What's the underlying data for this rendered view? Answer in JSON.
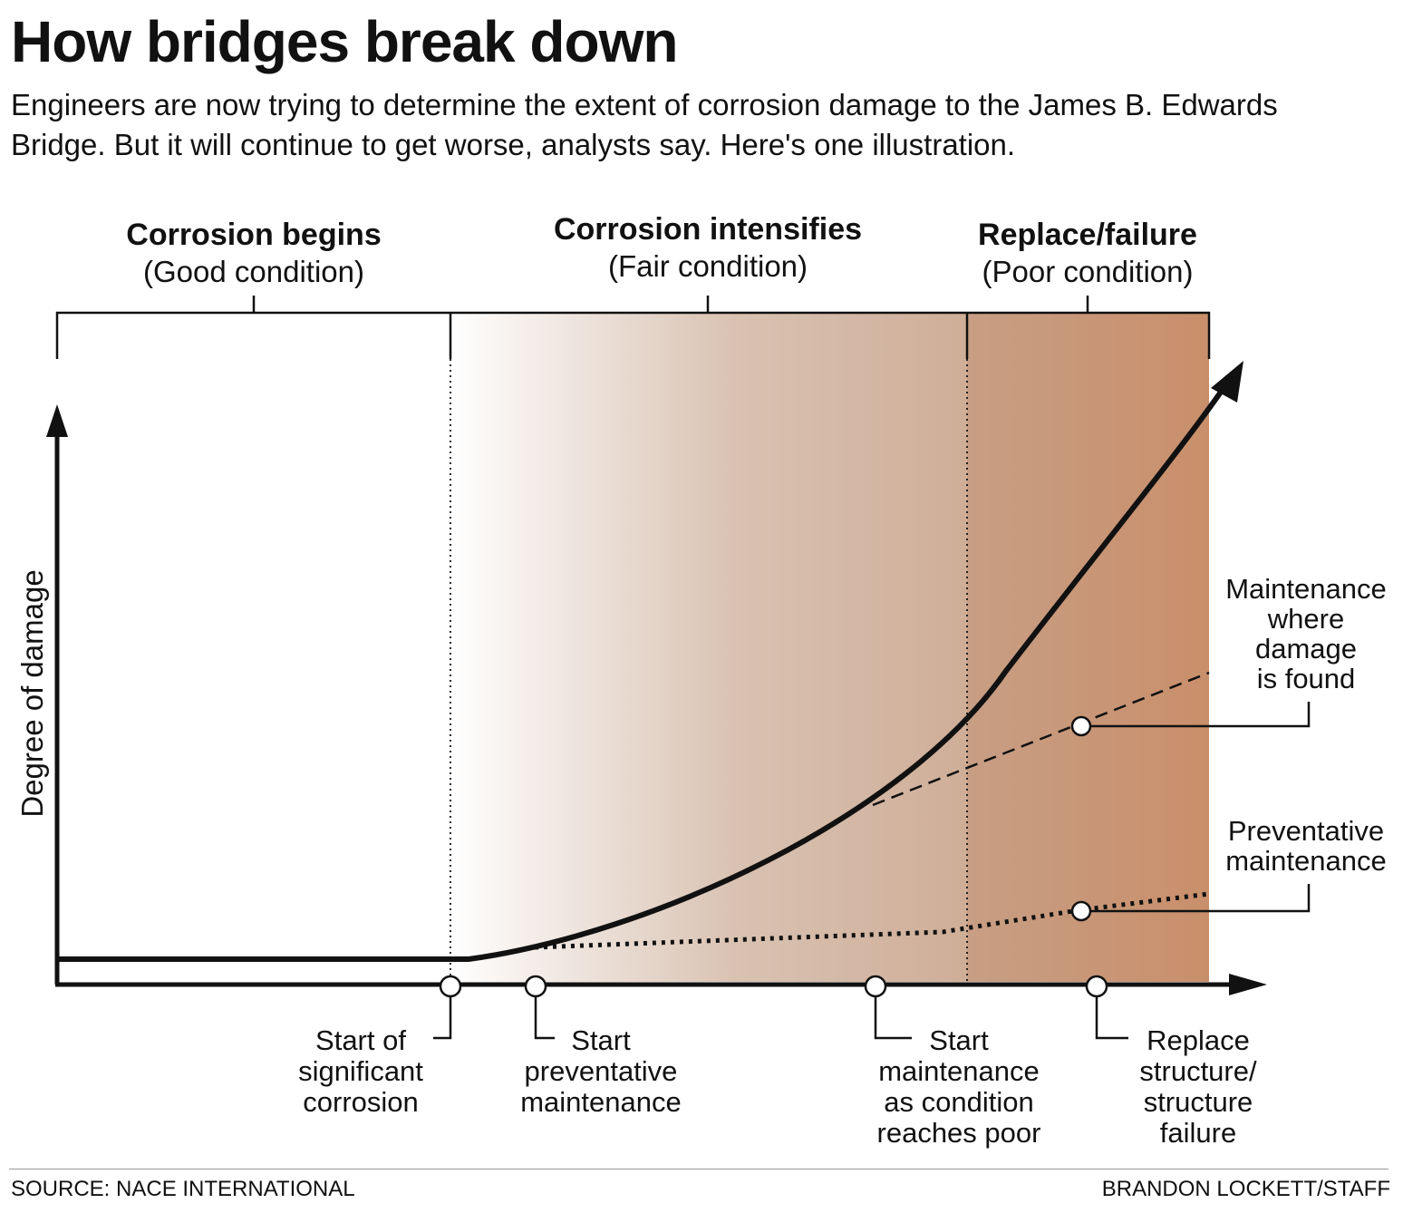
{
  "title": "How bridges break down",
  "subtitle": "Engineers are now trying to determine the extent of corrosion damage to the James B. Edwards Bridge. But it will continue to get worse, analysts say. Here's one illustration.",
  "phases": [
    {
      "heading": "Corrosion begins",
      "condition": "(Good condition)"
    },
    {
      "heading": "Corrosion intensifies",
      "condition": "(Fair condition)"
    },
    {
      "heading": "Replace/failure",
      "condition": "(Poor condition)"
    }
  ],
  "y_axis_label": "Degree of damage",
  "series_labels": {
    "reactive": [
      "Maintenance",
      "where",
      "damage",
      "is found"
    ],
    "preventative": [
      "Preventative",
      "maintenance"
    ]
  },
  "milestones": [
    {
      "lines": [
        "Start of",
        "significant",
        "corrosion"
      ]
    },
    {
      "lines": [
        "Start",
        "preventative",
        "maintenance"
      ]
    },
    {
      "lines": [
        "Start",
        "maintenance",
        "as condition",
        "reaches poor"
      ]
    },
    {
      "lines": [
        "Replace",
        "structure/",
        "structure",
        "failure"
      ]
    }
  ],
  "colors": {
    "poor_fill": "#c98f6b",
    "fair_mid": "#d9c2b2",
    "ink": "#111111"
  },
  "source": "SOURCE: NACE INTERNATIONAL",
  "credit": "BRANDON LOCKETT/STAFF"
}
